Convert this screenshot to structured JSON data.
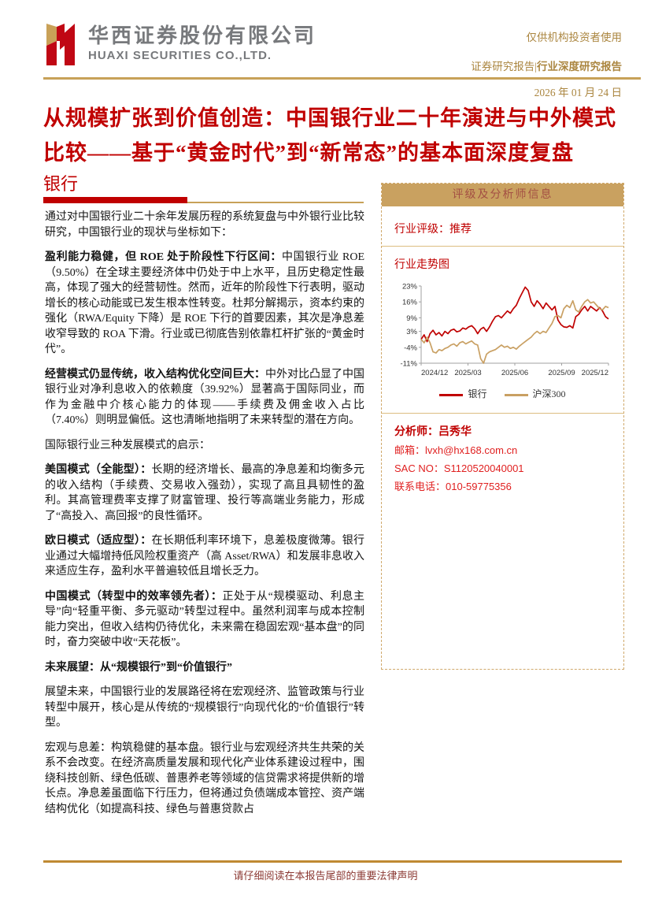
{
  "header": {
    "company_cn": "华西证券股份有限公司",
    "company_en": "HUAXI SECURITIES CO.,LTD.",
    "audience_note": "仅供机构投资者使用",
    "report_type_a": "证券研究报告",
    "report_sep": "|",
    "report_type_b": "行业深度研究报告",
    "date": "2026 年 01 月 24 日"
  },
  "title": {
    "line1": "从规模扩张到价值创造：中国银行业二十年演进与中外模式",
    "line2": "比较——基于“黄金时代”到“新常态”的基本面深度复盘"
  },
  "section": {
    "label": "银行"
  },
  "body": {
    "paragraphs": [
      {
        "lead": "",
        "text": "通过对中国银行业二十余年发展历程的系统复盘与中外银行业比较研究，中国银行业的现状与坐标如下："
      },
      {
        "lead": "盈利能力稳健，但 ROE 处于阶段性下行区间：",
        "text": "中国银行业 ROE（9.50%）在全球主要经济体中仍处于中上水平，且历史稳定性最高，体现了强大的经营韧性。然而，近年的阶段性下行表明，驱动增长的核心动能或已发生根本性转变。杜邦分解揭示，资本约束的强化（RWA/Equity 下降）是 ROE 下行的首要因素，其次是净息差收窄导致的 ROA 下滑。行业或已彻底告别依靠杠杆扩张的“黄金时代”。"
      },
      {
        "lead": "经营模式仍显传统，收入结构优化空间巨大：",
        "text": "中外对比凸显了中国银行业对净利息收入的依赖度（39.92%）显著高于国际同业，而作为金融中介核心能力的体现——手续费及佣金收入占比（7.40%）则明显偏低。这也清晰地指明了未来转型的潜在方向。"
      },
      {
        "lead": "",
        "text": "国际银行业三种发展模式的启示："
      },
      {
        "lead": "美国模式（全能型）：",
        "text": "长期的经济增长、最高的净息差和均衡多元的收入结构（手续费、交易收入强劲），实现了高且具韧性的盈利。其高管理费率支撑了财富管理、投行等高端业务能力，形成了“高投入、高回报”的良性循环。"
      },
      {
        "lead": "欧日模式（适应型）：",
        "text": "在长期低利率环境下，息差极度微薄。银行业通过大幅增持低风险权重资产（高 Asset/RWA）和发展非息收入来适应生存，盈利水平普遍较低且增长乏力。"
      },
      {
        "lead": "中国模式（转型中的效率领先者）：",
        "text": "正处于从“规模驱动、利息主导”向“轻重平衡、多元驱动”转型过程中。虽然利润率与成本控制能力突出，但收入结构仍待优化，未来需在稳固宏观“基本盘”的同时，奋力突破中收“天花板”。"
      },
      {
        "lead": "未来展望：从“规模银行”到“价值银行”",
        "text": ""
      },
      {
        "lead": "",
        "text": "展望未来，中国银行业的发展路径将在宏观经济、监管政策与行业转型中展开，核心是从传统的“规模银行”向现代化的“价值银行”转型。"
      },
      {
        "lead": "",
        "text": "宏观与息差：构筑稳健的基本盘。银行业与宏观经济共生共荣的关系不会改变。在经济高质量发展和现代化产业体系建设过程中，围绕科技创新、绿色低碳、普惠养老等领域的信贷需求将提供新的增长点。净息差虽面临下行压力，但将通过负债端成本管控、资产端结构优化（如提高科技、绿色与普惠贷款占"
      }
    ]
  },
  "sidebar": {
    "box_title": "评级及分析师信息",
    "rating_label": "行业评级：",
    "rating_value": "推荐",
    "chart_title": "行业走势图",
    "analyst": {
      "name_label": "分析师：",
      "name": "吕秀华",
      "email_line": "邮箱：lvxh@hx168.com.cn",
      "sac_line": "SAC NO：S1120520040001",
      "phone_line": "联系电话：010-59775356"
    }
  },
  "chart_data": {
    "type": "line",
    "title": "行业走势图",
    "ylim": [
      -11,
      23
    ],
    "y_ticks": [
      "23%",
      "16%",
      "9%",
      "3%",
      "-4%",
      "-11%"
    ],
    "y_tick_values": [
      23,
      16,
      9,
      3,
      -4,
      -11
    ],
    "x_ticks": [
      "2024/12",
      "2025/03",
      "2025/06",
      "2025/09",
      "2025/12"
    ],
    "legend_position": "bottom",
    "grid": false,
    "series": [
      {
        "name": "银行",
        "color": "#c00000",
        "values": [
          -0.5,
          1.5,
          -1.5,
          2,
          3.5,
          1.5,
          2.5,
          1,
          3,
          2,
          3.5,
          4,
          2.8,
          3.2,
          4.5,
          4,
          5,
          5.5,
          4.2,
          2,
          4,
          4.8,
          3,
          5,
          7.5,
          9.5,
          10,
          9,
          10.5,
          12,
          11,
          13,
          14.5,
          17.5,
          20,
          22.5,
          21,
          16,
          14,
          16.5,
          15,
          13,
          15.5,
          14,
          12.5,
          14,
          8,
          6,
          5,
          4.8,
          5.5,
          4.5,
          9.5,
          10.5,
          12.5,
          14,
          12,
          14,
          13,
          12,
          13.5,
          12,
          9.5,
          8.5
        ]
      },
      {
        "name": "沪深300",
        "color": "#c9a063",
        "values": [
          -0.5,
          -2,
          0.5,
          -2,
          -6,
          -6.5,
          -5,
          -5.5,
          -4.5,
          -4,
          -3,
          -2.5,
          -3.5,
          -2,
          -1.5,
          -2.5,
          -1.8,
          -1.2,
          -2.5,
          -3,
          -9,
          -11,
          -7,
          -6,
          -5.5,
          -5,
          -4,
          -3,
          -4,
          -3.5,
          -4.5,
          -4,
          -4.8,
          -3.5,
          -2.5,
          -1.5,
          -0.5,
          0.5,
          2,
          3,
          2,
          3,
          2.5,
          4.5,
          6.5,
          9.5,
          10,
          9,
          13,
          14.5,
          13.5,
          16.5,
          12.5,
          11.5,
          14,
          16,
          17,
          15.5,
          16,
          14.5,
          13,
          12.5,
          14,
          13.5
        ]
      }
    ]
  },
  "footer": {
    "disclaimer": "请仔细阅读在本报告尾部的重要法律声明"
  },
  "colors": {
    "accent_red": "#c00000",
    "gold": "#c7a158",
    "footer_red": "#8c3a34"
  }
}
